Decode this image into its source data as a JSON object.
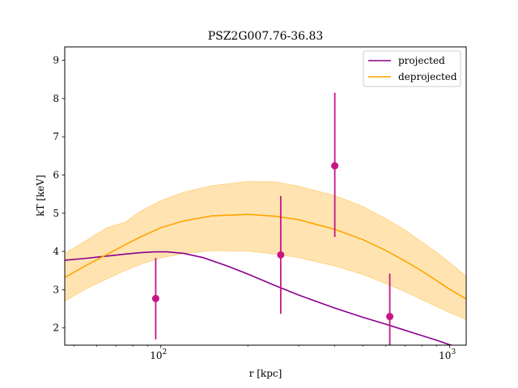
{
  "chart_data": {
    "type": "line",
    "title": "PSZ2G007.76-36.83",
    "xlabel": "r [kpc]",
    "ylabel": "kT [keV]",
    "xscale": "log",
    "xlim": [
      46.5,
      1140
    ],
    "ylim": [
      1.55,
      9.35
    ],
    "x_ticks": [
      {
        "value": 100,
        "base": "10",
        "exp": "2"
      },
      {
        "value": 1000,
        "base": "10",
        "exp": "3"
      }
    ],
    "y_ticks": [
      2,
      3,
      4,
      5,
      6,
      7,
      8,
      9
    ],
    "legend": {
      "placement": "top-right",
      "entries": [
        {
          "label": "projected",
          "color": "#8b008b"
        },
        {
          "label": "deprojected",
          "color": "#ffa500"
        }
      ]
    },
    "series": [
      {
        "name": "projected",
        "color": "#8b008b",
        "x": [
          46.5,
          55,
          65,
          75,
          85,
          95,
          105,
          120,
          140,
          170,
          200,
          250,
          300,
          400,
          500,
          600,
          700,
          800,
          900,
          1000,
          1100
        ],
        "y": [
          3.77,
          3.82,
          3.88,
          3.93,
          3.97,
          3.99,
          3.99,
          3.95,
          3.84,
          3.62,
          3.41,
          3.1,
          2.86,
          2.52,
          2.28,
          2.1,
          1.94,
          1.8,
          1.68,
          1.56,
          1.48
        ]
      },
      {
        "name": "deprojected",
        "color": "#ffa500",
        "x": [
          46.5,
          55,
          65,
          75,
          85,
          100,
          120,
          150,
          200,
          250,
          300,
          400,
          500,
          600,
          700,
          800,
          900,
          1000,
          1140
        ],
        "y": [
          3.32,
          3.63,
          3.92,
          4.17,
          4.38,
          4.62,
          4.8,
          4.93,
          4.97,
          4.92,
          4.83,
          4.58,
          4.31,
          4.03,
          3.75,
          3.49,
          3.24,
          3.01,
          2.76
        ],
        "band_lower": [
          2.7,
          3.02,
          3.28,
          3.5,
          3.66,
          3.83,
          3.95,
          4.02,
          4.01,
          3.93,
          3.84,
          3.62,
          3.4,
          3.16,
          2.95,
          2.74,
          2.56,
          2.4,
          2.22
        ],
        "band_upper": [
          3.95,
          4.28,
          4.62,
          4.76,
          5.05,
          5.33,
          5.55,
          5.72,
          5.83,
          5.82,
          5.71,
          5.46,
          5.18,
          4.86,
          4.56,
          4.25,
          3.98,
          3.71,
          3.35
        ]
      }
    ],
    "data_points": {
      "color": "#c71585",
      "points": [
        {
          "x": 96,
          "y": 2.77,
          "ylo": 1.7,
          "yhi": 3.83
        },
        {
          "x": 260,
          "y": 3.91,
          "ylo": 2.37,
          "yhi": 5.45
        },
        {
          "x": 400,
          "y": 6.24,
          "ylo": 4.38,
          "yhi": 8.15
        },
        {
          "x": 620,
          "y": 2.3,
          "ylo": 1.55,
          "yhi": 3.42
        }
      ]
    }
  }
}
